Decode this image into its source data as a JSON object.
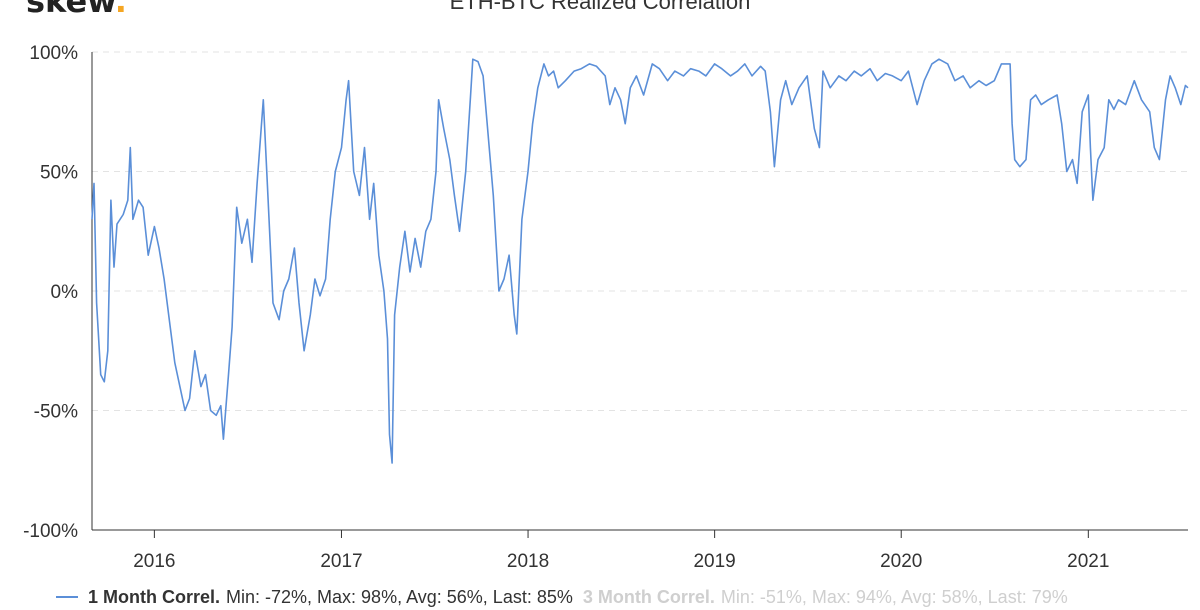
{
  "logo": {
    "text": "skew",
    "dot": "."
  },
  "colors": {
    "series_1m": "#5b8fd8",
    "series_3m": "#c9c9c9",
    "grid": "#e3e3e3",
    "axis": "#333333",
    "logo_dot": "#f5a623",
    "text": "#333333",
    "legend_inactive": "#cfcfcf"
  },
  "legend": [
    {
      "name": "1 Month Correl.",
      "stats": "Min: -72%, Max: 98%, Avg: 56%, Last: 85%",
      "active": true
    },
    {
      "name": "3 Month Correl.",
      "stats": "Min: -51%, Max: 94%, Avg: 58%, Last: 79%",
      "active": false
    }
  ],
  "chart_data": {
    "type": "line",
    "title": "ETH-BTC Realized Correlation",
    "xlabel": "",
    "ylabel": "",
    "ylim": [
      -100,
      100
    ],
    "xlim": [
      "2015-09",
      "2021-07-15"
    ],
    "yticks": [
      100,
      50,
      0,
      -50,
      -100
    ],
    "ytick_labels": [
      "100%",
      "50%",
      "0%",
      "-50%",
      "-100%"
    ],
    "xticks": [
      "2016",
      "2017",
      "2018",
      "2019",
      "2020",
      "2021"
    ],
    "grid": "horizontal dashed",
    "legend_position": "bottom",
    "series": [
      {
        "name": "1 Month Correl.",
        "points": [
          [
            "2015-09-01",
            30
          ],
          [
            "2015-09-05",
            45
          ],
          [
            "2015-09-10",
            -5
          ],
          [
            "2015-09-18",
            -35
          ],
          [
            "2015-09-25",
            -38
          ],
          [
            "2015-10-02",
            -25
          ],
          [
            "2015-10-08",
            38
          ],
          [
            "2015-10-14",
            10
          ],
          [
            "2015-10-20",
            28
          ],
          [
            "2015-11-01",
            32
          ],
          [
            "2015-11-10",
            38
          ],
          [
            "2015-11-15",
            60
          ],
          [
            "2015-11-20",
            30
          ],
          [
            "2015-12-01",
            38
          ],
          [
            "2015-12-10",
            35
          ],
          [
            "2015-12-20",
            15
          ],
          [
            "2016-01-01",
            27
          ],
          [
            "2016-01-10",
            18
          ],
          [
            "2016-01-20",
            5
          ],
          [
            "2016-02-01",
            -15
          ],
          [
            "2016-02-10",
            -30
          ],
          [
            "2016-02-20",
            -40
          ],
          [
            "2016-03-01",
            -50
          ],
          [
            "2016-03-10",
            -45
          ],
          [
            "2016-03-20",
            -25
          ],
          [
            "2016-04-01",
            -40
          ],
          [
            "2016-04-10",
            -35
          ],
          [
            "2016-04-20",
            -50
          ],
          [
            "2016-05-01",
            -52
          ],
          [
            "2016-05-10",
            -48
          ],
          [
            "2016-05-15",
            -62
          ],
          [
            "2016-05-25",
            -35
          ],
          [
            "2016-06-01",
            -15
          ],
          [
            "2016-06-10",
            35
          ],
          [
            "2016-06-20",
            20
          ],
          [
            "2016-07-01",
            30
          ],
          [
            "2016-07-10",
            12
          ],
          [
            "2016-07-20",
            45
          ],
          [
            "2016-08-01",
            80
          ],
          [
            "2016-08-10",
            40
          ],
          [
            "2016-08-20",
            -5
          ],
          [
            "2016-09-01",
            -12
          ],
          [
            "2016-09-10",
            0
          ],
          [
            "2016-09-20",
            5
          ],
          [
            "2016-10-01",
            18
          ],
          [
            "2016-10-10",
            -5
          ],
          [
            "2016-10-20",
            -25
          ],
          [
            "2016-11-01",
            -10
          ],
          [
            "2016-11-10",
            5
          ],
          [
            "2016-11-20",
            -2
          ],
          [
            "2016-12-01",
            5
          ],
          [
            "2016-12-10",
            30
          ],
          [
            "2016-12-20",
            50
          ],
          [
            "2017-01-01",
            60
          ],
          [
            "2017-01-10",
            80
          ],
          [
            "2017-01-15",
            88
          ],
          [
            "2017-01-25",
            50
          ],
          [
            "2017-02-05",
            40
          ],
          [
            "2017-02-15",
            60
          ],
          [
            "2017-02-25",
            30
          ],
          [
            "2017-03-05",
            45
          ],
          [
            "2017-03-15",
            15
          ],
          [
            "2017-03-25",
            0
          ],
          [
            "2017-04-01",
            -20
          ],
          [
            "2017-04-05",
            -60
          ],
          [
            "2017-04-10",
            -72
          ],
          [
            "2017-04-15",
            -10
          ],
          [
            "2017-04-25",
            10
          ],
          [
            "2017-05-05",
            25
          ],
          [
            "2017-05-15",
            8
          ],
          [
            "2017-05-25",
            22
          ],
          [
            "2017-06-05",
            10
          ],
          [
            "2017-06-15",
            25
          ],
          [
            "2017-06-25",
            30
          ],
          [
            "2017-07-05",
            50
          ],
          [
            "2017-07-10",
            80
          ],
          [
            "2017-07-20",
            68
          ],
          [
            "2017-08-01",
            55
          ],
          [
            "2017-08-10",
            40
          ],
          [
            "2017-08-20",
            25
          ],
          [
            "2017-09-01",
            50
          ],
          [
            "2017-09-10",
            80
          ],
          [
            "2017-09-15",
            97
          ],
          [
            "2017-09-25",
            96
          ],
          [
            "2017-10-05",
            90
          ],
          [
            "2017-10-15",
            65
          ],
          [
            "2017-10-25",
            40
          ],
          [
            "2017-11-05",
            0
          ],
          [
            "2017-11-15",
            5
          ],
          [
            "2017-11-25",
            15
          ],
          [
            "2017-12-05",
            -10
          ],
          [
            "2017-12-10",
            -18
          ],
          [
            "2017-12-20",
            30
          ],
          [
            "2018-01-01",
            50
          ],
          [
            "2018-01-10",
            70
          ],
          [
            "2018-01-20",
            85
          ],
          [
            "2018-02-01",
            95
          ],
          [
            "2018-02-10",
            90
          ],
          [
            "2018-02-20",
            92
          ],
          [
            "2018-03-01",
            85
          ],
          [
            "2018-03-15",
            88
          ],
          [
            "2018-04-01",
            92
          ],
          [
            "2018-04-15",
            93
          ],
          [
            "2018-05-01",
            95
          ],
          [
            "2018-05-15",
            94
          ],
          [
            "2018-06-01",
            90
          ],
          [
            "2018-06-10",
            78
          ],
          [
            "2018-06-20",
            85
          ],
          [
            "2018-07-01",
            80
          ],
          [
            "2018-07-10",
            70
          ],
          [
            "2018-07-20",
            85
          ],
          [
            "2018-08-01",
            90
          ],
          [
            "2018-08-15",
            82
          ],
          [
            "2018-09-01",
            95
          ],
          [
            "2018-09-15",
            93
          ],
          [
            "2018-10-01",
            88
          ],
          [
            "2018-10-15",
            92
          ],
          [
            "2018-11-01",
            90
          ],
          [
            "2018-11-15",
            93
          ],
          [
            "2018-12-01",
            92
          ],
          [
            "2018-12-15",
            90
          ],
          [
            "2019-01-01",
            95
          ],
          [
            "2019-01-15",
            93
          ],
          [
            "2019-02-01",
            90
          ],
          [
            "2019-02-15",
            92
          ],
          [
            "2019-03-01",
            95
          ],
          [
            "2019-03-15",
            90
          ],
          [
            "2019-04-01",
            94
          ],
          [
            "2019-04-10",
            92
          ],
          [
            "2019-04-20",
            75
          ],
          [
            "2019-04-28",
            52
          ],
          [
            "2019-05-10",
            80
          ],
          [
            "2019-05-20",
            88
          ],
          [
            "2019-06-01",
            78
          ],
          [
            "2019-06-15",
            85
          ],
          [
            "2019-07-01",
            90
          ],
          [
            "2019-07-15",
            68
          ],
          [
            "2019-07-25",
            60
          ],
          [
            "2019-08-01",
            92
          ],
          [
            "2019-08-15",
            85
          ],
          [
            "2019-09-01",
            90
          ],
          [
            "2019-09-15",
            88
          ],
          [
            "2019-10-01",
            92
          ],
          [
            "2019-10-15",
            90
          ],
          [
            "2019-11-01",
            93
          ],
          [
            "2019-11-15",
            88
          ],
          [
            "2019-12-01",
            91
          ],
          [
            "2019-12-15",
            90
          ],
          [
            "2020-01-01",
            88
          ],
          [
            "2020-01-15",
            92
          ],
          [
            "2020-02-01",
            78
          ],
          [
            "2020-02-15",
            88
          ],
          [
            "2020-03-01",
            95
          ],
          [
            "2020-03-15",
            97
          ],
          [
            "2020-04-01",
            95
          ],
          [
            "2020-04-15",
            88
          ],
          [
            "2020-05-01",
            90
          ],
          [
            "2020-05-15",
            85
          ],
          [
            "2020-06-01",
            88
          ],
          [
            "2020-06-15",
            86
          ],
          [
            "2020-07-01",
            88
          ],
          [
            "2020-07-15",
            95
          ],
          [
            "2020-08-01",
            95
          ],
          [
            "2020-08-05",
            70
          ],
          [
            "2020-08-10",
            55
          ],
          [
            "2020-08-20",
            52
          ],
          [
            "2020-09-01",
            55
          ],
          [
            "2020-09-10",
            80
          ],
          [
            "2020-09-20",
            82
          ],
          [
            "2020-10-01",
            78
          ],
          [
            "2020-10-15",
            80
          ],
          [
            "2020-11-01",
            82
          ],
          [
            "2020-11-10",
            70
          ],
          [
            "2020-11-20",
            50
          ],
          [
            "2020-12-01",
            55
          ],
          [
            "2020-12-10",
            45
          ],
          [
            "2020-12-20",
            75
          ],
          [
            "2021-01-01",
            82
          ],
          [
            "2021-01-05",
            60
          ],
          [
            "2021-01-10",
            38
          ],
          [
            "2021-01-20",
            55
          ],
          [
            "2021-02-01",
            60
          ],
          [
            "2021-02-10",
            80
          ],
          [
            "2021-02-20",
            76
          ],
          [
            "2021-03-01",
            80
          ],
          [
            "2021-03-15",
            78
          ],
          [
            "2021-04-01",
            88
          ],
          [
            "2021-04-15",
            80
          ],
          [
            "2021-05-01",
            75
          ],
          [
            "2021-05-10",
            60
          ],
          [
            "2021-05-20",
            55
          ],
          [
            "2021-06-01",
            80
          ],
          [
            "2021-06-10",
            90
          ],
          [
            "2021-06-20",
            85
          ],
          [
            "2021-07-01",
            78
          ],
          [
            "2021-07-10",
            86
          ],
          [
            "2021-07-15",
            85
          ]
        ]
      }
    ]
  }
}
